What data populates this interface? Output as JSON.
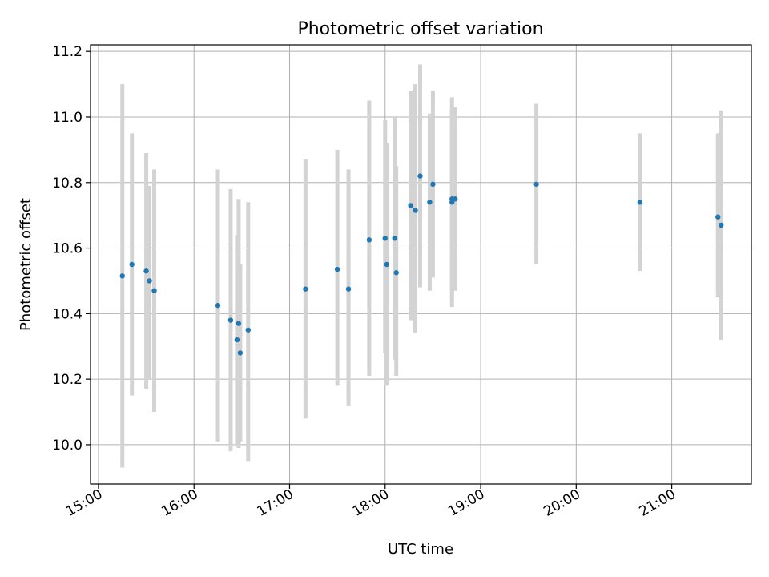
{
  "chart_data": {
    "type": "scatter",
    "title": "Photometric offset variation",
    "xlabel": "UTC time",
    "ylabel": "Photometric offset",
    "xlim": [
      "14:55",
      "21:50"
    ],
    "ylim": [
      9.88,
      11.22
    ],
    "x_ticks": [
      "15:00",
      "16:00",
      "17:00",
      "18:00",
      "19:00",
      "20:00",
      "21:00"
    ],
    "y_ticks": [
      10.0,
      10.2,
      10.4,
      10.6,
      10.8,
      11.0,
      11.2
    ],
    "grid": true,
    "colors": {
      "points": "#1f77b4",
      "error_bars": "#d3d3d3"
    },
    "points": [
      {
        "time": "15:15",
        "y": 10.515,
        "ylow": 9.93,
        "yhigh": 11.1
      },
      {
        "time": "15:21",
        "y": 10.55,
        "ylow": 10.15,
        "yhigh": 10.95
      },
      {
        "time": "15:30",
        "y": 10.53,
        "ylow": 10.17,
        "yhigh": 10.89
      },
      {
        "time": "15:32",
        "y": 10.5,
        "ylow": 10.2,
        "yhigh": 10.79
      },
      {
        "time": "15:35",
        "y": 10.47,
        "ylow": 10.1,
        "yhigh": 10.84
      },
      {
        "time": "16:15",
        "y": 10.425,
        "ylow": 10.01,
        "yhigh": 10.84
      },
      {
        "time": "16:23",
        "y": 10.38,
        "ylow": 9.98,
        "yhigh": 10.78
      },
      {
        "time": "16:27",
        "y": 10.32,
        "ylow": 10.0,
        "yhigh": 10.64
      },
      {
        "time": "16:28",
        "y": 10.37,
        "ylow": 9.99,
        "yhigh": 10.75
      },
      {
        "time": "16:29",
        "y": 10.28,
        "ylow": 10.01,
        "yhigh": 10.55
      },
      {
        "time": "16:34",
        "y": 10.35,
        "ylow": 9.95,
        "yhigh": 10.74
      },
      {
        "time": "17:10",
        "y": 10.475,
        "ylow": 10.08,
        "yhigh": 10.87
      },
      {
        "time": "17:30",
        "y": 10.535,
        "ylow": 10.18,
        "yhigh": 10.9
      },
      {
        "time": "17:37",
        "y": 10.475,
        "ylow": 10.12,
        "yhigh": 10.84
      },
      {
        "time": "17:50",
        "y": 10.625,
        "ylow": 10.21,
        "yhigh": 11.05
      },
      {
        "time": "18:00",
        "y": 10.63,
        "ylow": 10.28,
        "yhigh": 10.99
      },
      {
        "time": "18:01",
        "y": 10.55,
        "ylow": 10.18,
        "yhigh": 10.92
      },
      {
        "time": "18:06",
        "y": 10.63,
        "ylow": 10.26,
        "yhigh": 11.0
      },
      {
        "time": "18:07",
        "y": 10.525,
        "ylow": 10.21,
        "yhigh": 10.85
      },
      {
        "time": "18:16",
        "y": 10.73,
        "ylow": 10.38,
        "yhigh": 11.08
      },
      {
        "time": "18:19",
        "y": 10.715,
        "ylow": 10.34,
        "yhigh": 11.1
      },
      {
        "time": "18:22",
        "y": 10.82,
        "ylow": 10.48,
        "yhigh": 11.16
      },
      {
        "time": "18:28",
        "y": 10.74,
        "ylow": 10.47,
        "yhigh": 11.01
      },
      {
        "time": "18:30",
        "y": 10.795,
        "ylow": 10.51,
        "yhigh": 11.08
      },
      {
        "time": "18:42",
        "y": 10.75,
        "ylow": 10.42,
        "yhigh": 11.06
      },
      {
        "time": "18:42",
        "y": 10.74,
        "ylow": 10.45,
        "yhigh": 11.03
      },
      {
        "time": "18:44",
        "y": 10.75,
        "ylow": 10.47,
        "yhigh": 11.03
      },
      {
        "time": "19:35",
        "y": 10.795,
        "ylow": 10.55,
        "yhigh": 11.04
      },
      {
        "time": "20:40",
        "y": 10.74,
        "ylow": 10.53,
        "yhigh": 10.95
      },
      {
        "time": "21:29",
        "y": 10.695,
        "ylow": 10.45,
        "yhigh": 10.95
      },
      {
        "time": "21:31",
        "y": 10.67,
        "ylow": 10.32,
        "yhigh": 11.02
      }
    ]
  }
}
